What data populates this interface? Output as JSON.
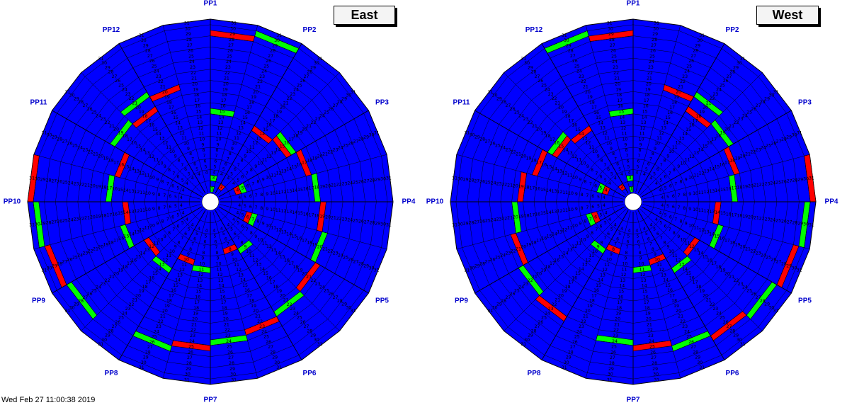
{
  "panels": [
    {
      "title": "East",
      "sector_labels": [
        "PP1",
        "PP2",
        "PP3",
        "PP4",
        "PP5",
        "PP6",
        "PP7",
        "PP8",
        "PP9",
        "PP10",
        "PP11",
        "PP12"
      ],
      "highlighted_cells": [
        {
          "sector": 1,
          "ring": 1,
          "number": "1",
          "status": "green"
        },
        {
          "sector": 1,
          "ring": 3,
          "number": "3",
          "status": "green"
        },
        {
          "sector": 1,
          "ring": 15,
          "number": "15",
          "status": "green"
        },
        {
          "sector": 1,
          "ring": 29,
          "number": "29",
          "status": "red"
        },
        {
          "sector": 2,
          "ring": 30,
          "number": "30",
          "status": "green"
        },
        {
          "sector": 3,
          "ring": 2,
          "number": "2",
          "status": "red"
        },
        {
          "sector": 3,
          "ring": 14,
          "number": "14",
          "status": "red"
        },
        {
          "sector": 4,
          "ring": 15,
          "number": "15",
          "status": "red"
        },
        {
          "sector": 4,
          "ring": 16,
          "number": "16",
          "status": "green"
        },
        {
          "sector": 5,
          "ring": 4,
          "number": "4",
          "status": "red"
        },
        {
          "sector": 5,
          "ring": 5,
          "number": "5",
          "status": "green"
        },
        {
          "sector": 5,
          "ring": 17,
          "number": "17",
          "status": "red"
        },
        {
          "sector": 6,
          "ring": 18,
          "number": "18",
          "status": "green"
        },
        {
          "sector": 7,
          "ring": 19,
          "number": "19",
          "status": "red"
        },
        {
          "sector": 8,
          "ring": 7,
          "number": "7",
          "status": "green"
        },
        {
          "sector": 8,
          "ring": 6,
          "number": "6",
          "status": "red"
        },
        {
          "sector": 8,
          "ring": 20,
          "number": "20",
          "status": "green"
        },
        {
          "sector": 9,
          "ring": 21,
          "number": "21",
          "status": "red"
        },
        {
          "sector": 10,
          "ring": 9,
          "number": "9",
          "status": "green"
        },
        {
          "sector": 10,
          "ring": 22,
          "number": "22",
          "status": "green"
        },
        {
          "sector": 11,
          "ring": 8,
          "number": "8",
          "status": "red"
        },
        {
          "sector": 11,
          "ring": 23,
          "number": "23",
          "status": "red"
        },
        {
          "sector": 12,
          "ring": 24,
          "number": "24",
          "status": "green"
        },
        {
          "sector": 13,
          "ring": 11,
          "number": "11",
          "status": "green"
        },
        {
          "sector": 13,
          "ring": 25,
          "number": "25",
          "status": "red"
        },
        {
          "sector": 14,
          "ring": 10,
          "number": "10",
          "status": "red"
        },
        {
          "sector": 14,
          "ring": 26,
          "number": "26",
          "status": "green"
        },
        {
          "sector": 15,
          "ring": 13,
          "number": "13",
          "status": "green"
        },
        {
          "sector": 16,
          "ring": 12,
          "number": "12",
          "status": "red"
        },
        {
          "sector": 16,
          "ring": 28,
          "number": "28",
          "status": "green"
        },
        {
          "sector": 17,
          "ring": 15,
          "number": "15",
          "status": "green"
        },
        {
          "sector": 17,
          "ring": 29,
          "number": "29",
          "status": "red"
        },
        {
          "sector": 18,
          "ring": 14,
          "number": "14",
          "status": "red"
        },
        {
          "sector": 18,
          "ring": 30,
          "number": "30",
          "status": "green"
        },
        {
          "sector": 19,
          "ring": 17,
          "number": "17",
          "status": "green"
        },
        {
          "sector": 19,
          "ring": 31,
          "number": "31",
          "status": "red"
        },
        {
          "sector": 20,
          "ring": 16,
          "number": "16",
          "status": "red"
        },
        {
          "sector": 21,
          "ring": 19,
          "number": "19",
          "status": "green"
        },
        {
          "sector": 22,
          "ring": 18,
          "number": "18",
          "status": "red"
        },
        {
          "sector": 22,
          "ring": 21,
          "number": "21",
          "status": "green"
        },
        {
          "sector": 23,
          "ring": 20,
          "number": "20",
          "status": "red"
        }
      ]
    },
    {
      "title": "West",
      "sector_labels": [
        "PP1",
        "PP12",
        "PP11",
        "PP10",
        "PP9",
        "PP8",
        "PP7",
        "PP6",
        "PP5",
        "PP4",
        "PP3",
        "PP2"
      ],
      "highlighted_cells": [
        {
          "sector": 1,
          "ring": 1,
          "number": "1",
          "status": "green"
        },
        {
          "sector": 1,
          "ring": 3,
          "number": "3",
          "status": "green"
        },
        {
          "sector": 1,
          "ring": 15,
          "number": "15",
          "status": "green"
        },
        {
          "sector": 1,
          "ring": 29,
          "number": "29",
          "status": "red"
        },
        {
          "sector": 2,
          "ring": 30,
          "number": "30",
          "status": "green"
        },
        {
          "sector": 3,
          "ring": 2,
          "number": "2",
          "status": "red"
        },
        {
          "sector": 3,
          "ring": 14,
          "number": "14",
          "status": "red"
        },
        {
          "sector": 4,
          "ring": 15,
          "number": "15",
          "status": "red"
        },
        {
          "sector": 4,
          "ring": 16,
          "number": "16",
          "status": "green"
        },
        {
          "sector": 5,
          "ring": 4,
          "number": "4",
          "status": "red"
        },
        {
          "sector": 5,
          "ring": 5,
          "number": "5",
          "status": "green"
        },
        {
          "sector": 5,
          "ring": 17,
          "number": "17",
          "status": "red"
        },
        {
          "sector": 6,
          "ring": 19,
          "number": "19",
          "status": "red"
        },
        {
          "sector": 7,
          "ring": 20,
          "number": "20",
          "status": "green"
        },
        {
          "sector": 8,
          "ring": 7,
          "number": "7",
          "status": "green"
        },
        {
          "sector": 8,
          "ring": 6,
          "number": "6",
          "status": "red"
        },
        {
          "sector": 8,
          "ring": 21,
          "number": "21",
          "status": "red"
        },
        {
          "sector": 9,
          "ring": 22,
          "number": "22",
          "status": "green"
        },
        {
          "sector": 10,
          "ring": 9,
          "number": "9",
          "status": "green"
        },
        {
          "sector": 10,
          "ring": 23,
          "number": "23",
          "status": "red"
        },
        {
          "sector": 11,
          "ring": 8,
          "number": "8",
          "status": "red"
        },
        {
          "sector": 12,
          "ring": 24,
          "number": "24",
          "status": "green"
        },
        {
          "sector": 13,
          "ring": 11,
          "number": "11",
          "status": "green"
        },
        {
          "sector": 13,
          "ring": 25,
          "number": "25",
          "status": "red"
        },
        {
          "sector": 14,
          "ring": 10,
          "number": "10",
          "status": "red"
        },
        {
          "sector": 14,
          "ring": 26,
          "number": "26",
          "status": "green"
        },
        {
          "sector": 15,
          "ring": 13,
          "number": "13",
          "status": "green"
        },
        {
          "sector": 15,
          "ring": 27,
          "number": "27",
          "status": "red"
        },
        {
          "sector": 16,
          "ring": 12,
          "number": "12",
          "status": "red"
        },
        {
          "sector": 16,
          "ring": 28,
          "number": "28",
          "status": "green"
        },
        {
          "sector": 17,
          "ring": 15,
          "number": "15",
          "status": "green"
        },
        {
          "sector": 17,
          "ring": 29,
          "number": "29",
          "status": "red"
        },
        {
          "sector": 18,
          "ring": 14,
          "number": "14",
          "status": "red"
        },
        {
          "sector": 18,
          "ring": 30,
          "number": "30",
          "status": "green"
        },
        {
          "sector": 19,
          "ring": 17,
          "number": "17",
          "status": "green"
        },
        {
          "sector": 19,
          "ring": 31,
          "number": "31",
          "status": "red"
        },
        {
          "sector": 20,
          "ring": 18,
          "number": "18",
          "status": "red"
        },
        {
          "sector": 21,
          "ring": 19,
          "number": "19",
          "status": "green"
        },
        {
          "sector": 22,
          "ring": 18,
          "number": "18",
          "status": "red"
        },
        {
          "sector": 22,
          "ring": 21,
          "number": "21",
          "status": "green"
        },
        {
          "sector": 23,
          "ring": 20,
          "number": "20",
          "status": "red"
        }
      ]
    }
  ],
  "footer_text": "Wed Feb 27 11:00:38 2019",
  "colors": {
    "cell_default": "#0000ff",
    "cell_green": "#00ff00",
    "cell_red": "#ff0000",
    "grid_line": "#000000",
    "sector_label": "#0000cc",
    "cell_text": "#000000"
  }
}
